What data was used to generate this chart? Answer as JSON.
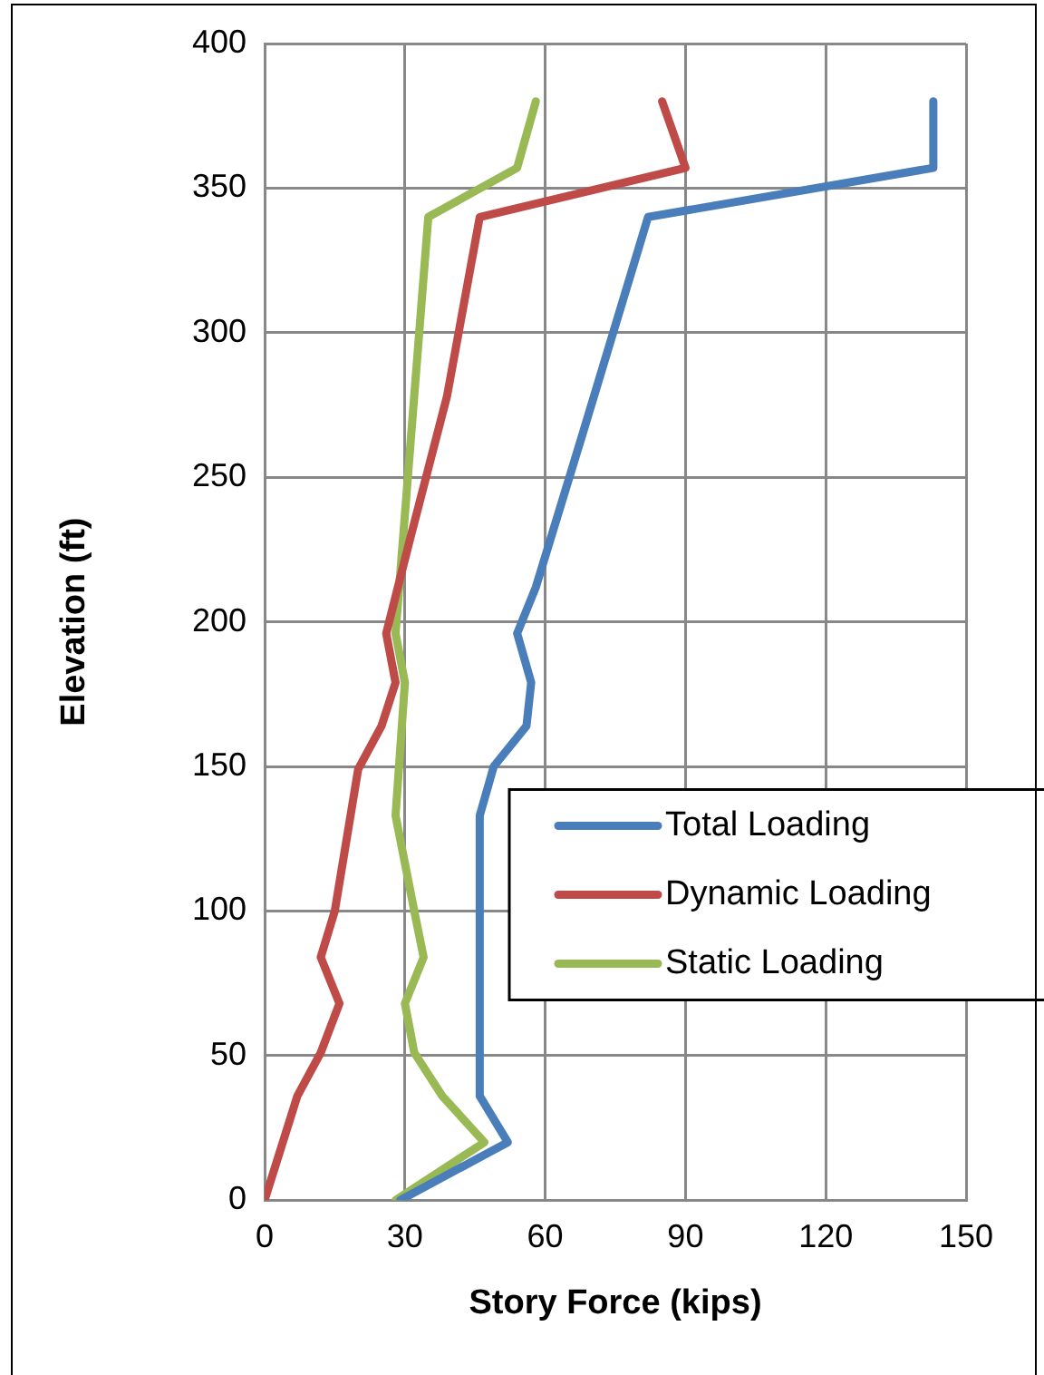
{
  "chart_data": {
    "type": "line",
    "xlabel": "Story Force (kips)",
    "ylabel": "Elevation (ft)",
    "xlim": [
      0,
      150
    ],
    "xticks": [
      0,
      30,
      60,
      90,
      120,
      150
    ],
    "ylim": [
      0,
      400
    ],
    "yticks": [
      0,
      50,
      100,
      150,
      200,
      250,
      300,
      350,
      400
    ],
    "grid": true,
    "legend": "right",
    "marker": "none",
    "line_style": "solid",
    "series": [
      {
        "name": "Total Loading",
        "color": "#4a7ebb",
        "x": [
          29,
          52,
          46,
          46,
          49,
          56,
          57,
          54,
          58,
          68,
          82,
          143,
          143
        ],
        "values": [
          0,
          20,
          36,
          133,
          150,
          164,
          179,
          196,
          212,
          265,
          340,
          357,
          380
        ]
      },
      {
        "name": "Dynamic Loading",
        "color": "#be4b48",
        "x": [
          0,
          7,
          12,
          16,
          12,
          15,
          20,
          25,
          28,
          26,
          31,
          39,
          46,
          90,
          85
        ],
        "values": [
          0,
          36,
          51,
          68,
          84,
          100,
          149,
          164,
          179,
          196,
          228,
          278,
          340,
          357,
          380
        ]
      },
      {
        "name": "Static Loading",
        "color": "#98b954",
        "x": [
          28,
          47,
          38,
          32,
          30,
          34,
          32,
          28,
          30,
          28,
          35,
          54,
          58
        ],
        "values": [
          0,
          20,
          36,
          51,
          68,
          84,
          100,
          133,
          179,
          196,
          340,
          357,
          380
        ]
      }
    ]
  }
}
